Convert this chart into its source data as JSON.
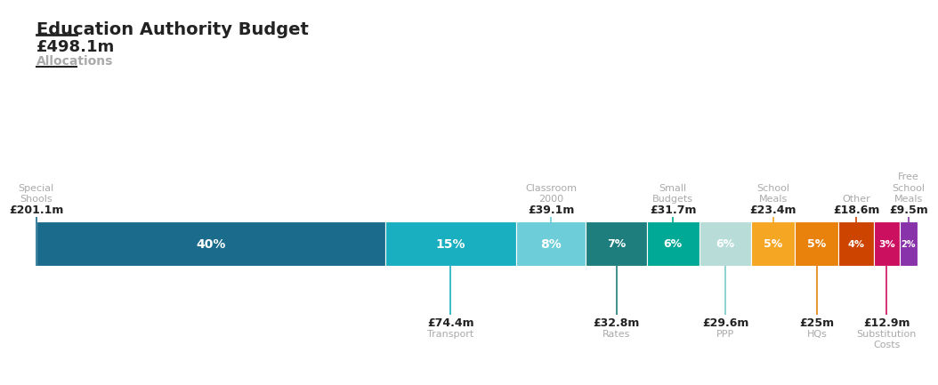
{
  "title": "Education Authority Budget",
  "total_label": "£498.1m",
  "total_sublabel": "Allocations",
  "segments": [
    {
      "label": "Special\nShools",
      "value": "£201.1m",
      "pct": "40%",
      "pct_val": 40,
      "color": "#1b6c8c",
      "above": true,
      "line_color": "#1b6c8c",
      "line_at_left": true
    },
    {
      "label": "Transport",
      "value": "£74.4m",
      "pct": "15%",
      "pct_val": 15,
      "color": "#1aafc0",
      "above": false,
      "line_color": "#1aafc0",
      "line_at_left": false
    },
    {
      "label": "Classroom\n2000",
      "value": "£39.1m",
      "pct": "8%",
      "pct_val": 8,
      "color": "#6dcdd8",
      "above": true,
      "line_color": "#6dcdd8",
      "line_at_left": false
    },
    {
      "label": "Rates",
      "value": "£32.8m",
      "pct": "7%",
      "pct_val": 7,
      "color": "#1e7e7e",
      "above": false,
      "line_color": "#1e7e7e",
      "line_at_left": false
    },
    {
      "label": "Small\nBudgets",
      "value": "£31.7m",
      "pct": "6%",
      "pct_val": 6,
      "color": "#00a896",
      "above": true,
      "line_color": "#00a896",
      "line_at_left": false
    },
    {
      "label": "PPP",
      "value": "£29.6m",
      "pct": "6%",
      "pct_val": 6,
      "color": "#b8ddd8",
      "above": false,
      "line_color": "#7accc8",
      "line_at_left": false
    },
    {
      "label": "School\nMeals",
      "value": "£23.4m",
      "pct": "5%",
      "pct_val": 5,
      "color": "#f5a623",
      "above": true,
      "line_color": "#f5a623",
      "line_at_left": false
    },
    {
      "label": "HQs",
      "value": "£25m",
      "pct": "5%",
      "pct_val": 5,
      "color": "#e8820c",
      "above": false,
      "line_color": "#e8820c",
      "line_at_left": false
    },
    {
      "label": "Other",
      "value": "£18.6m",
      "pct": "4%",
      "pct_val": 4,
      "color": "#cc4400",
      "above": true,
      "line_color": "#cc4400",
      "line_at_left": false
    },
    {
      "label": "Substitution\nCosts",
      "value": "£12.9m",
      "pct": "3%",
      "pct_val": 3,
      "color": "#cc1060",
      "above": false,
      "line_color": "#cc1060",
      "line_at_left": false
    },
    {
      "label": "Free\nSchool\nMeals",
      "value": "£9.5m",
      "pct": "2%",
      "pct_val": 2,
      "color": "#8833aa",
      "above": true,
      "line_color": "#8833aa",
      "line_at_left": false
    }
  ],
  "bg_color": "#ffffff",
  "text_color_dark": "#222222",
  "text_color_gray": "#aaaaaa"
}
